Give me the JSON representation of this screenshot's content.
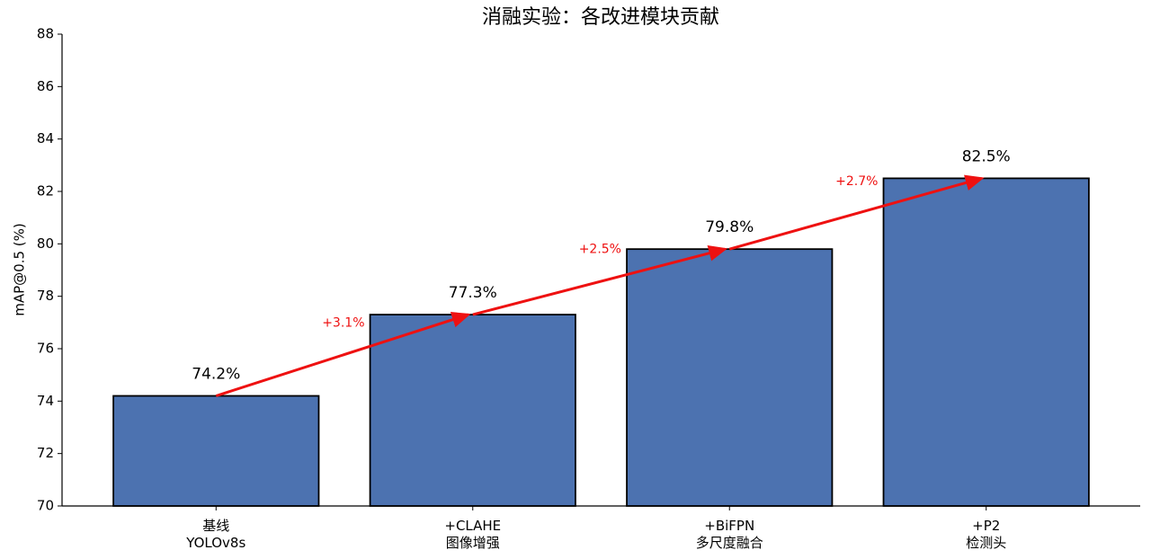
{
  "chart_data": {
    "type": "bar",
    "title": "消融实验：各改进模块贡献",
    "y_label": "mAP@0.5 (%)",
    "categories": [
      [
        "基线",
        "YOLOv8s"
      ],
      [
        "+CLAHE",
        "图像增强"
      ],
      [
        "+BiFPN",
        "多尺度融合"
      ],
      [
        "+P2",
        "检测头"
      ]
    ],
    "values": [
      74.2,
      77.3,
      79.8,
      82.5
    ],
    "value_labels": [
      "74.2%",
      "77.3%",
      "79.8%",
      "82.5%"
    ],
    "annotations": [
      "+3.1%",
      "+2.5%",
      "+2.7%"
    ],
    "color": "#4c72b0",
    "edge_color": "#000000",
    "arrow_color": "#ee1111",
    "ylim": [
      70,
      88
    ],
    "yticks": [
      70,
      72,
      74,
      76,
      78,
      80,
      82,
      84,
      86,
      88
    ],
    "grid": false
  }
}
